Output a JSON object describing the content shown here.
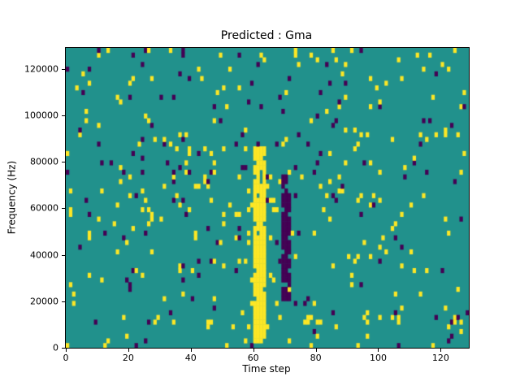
{
  "chart_data": {
    "type": "heatmap",
    "title": "Predicted : Gma",
    "xlabel": "Time step",
    "ylabel": "Frequency (Hz)",
    "xlim": [
      0,
      129
    ],
    "ylim": [
      0,
      129000
    ],
    "x_ticks": [
      0,
      20,
      40,
      60,
      80,
      100,
      120
    ],
    "y_ticks": [
      0,
      20000,
      40000,
      60000,
      80000,
      100000,
      120000
    ],
    "grid_cols": 129,
    "grid_rows": 64,
    "grid": false,
    "legend": null,
    "colors": {
      "background": "#21918c",
      "high": "#fde725",
      "low": "#440154",
      "axis": "#000000"
    },
    "noise": {
      "seed": 7,
      "yellow_density": 0.032,
      "purple_density": 0.018
    },
    "features": [
      {
        "name": "yellow-vertical-band",
        "value": "high",
        "x_start": 60,
        "x_end": 64,
        "y_start": 2000,
        "y_end": 86000,
        "fill": 0.88
      },
      {
        "name": "purple-vertical-band",
        "value": "low",
        "x_start": 69,
        "x_end": 72,
        "y_start": 20000,
        "y_end": 74000,
        "fill": 0.85
      }
    ]
  }
}
